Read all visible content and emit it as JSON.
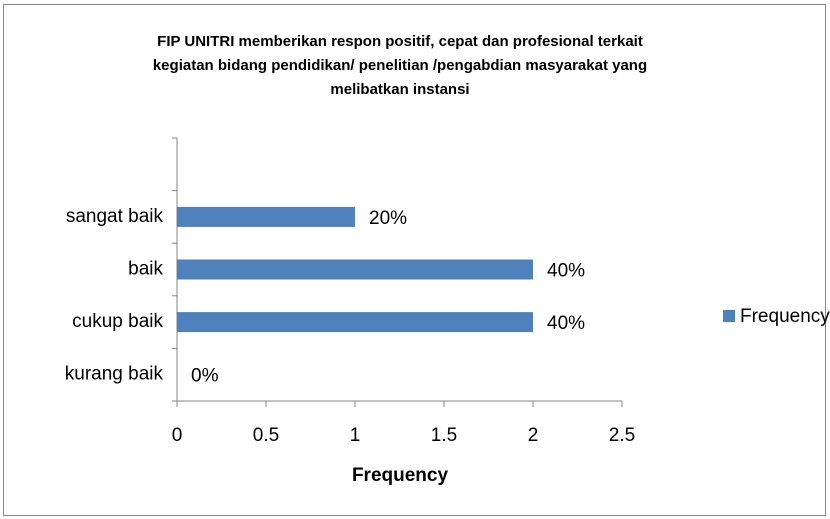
{
  "chart_data": {
    "type": "barh",
    "title": [
      "FIP UNITRI memberikan respon positif, cepat dan profesional terkait",
      "kegiatan bidang pendidikan/ penelitian /pengabdian masyarakat yang",
      "melibatkan instansi"
    ],
    "categories": [
      "kurang baik",
      "cukup baik",
      "baik",
      "sangat baik",
      null
    ],
    "series": [
      {
        "name": "Frequency",
        "color": "#4f81bd",
        "values": [
          0,
          2,
          2,
          1,
          null
        ],
        "percentages": [
          {
            "value": 0,
            "label": "0%"
          },
          {
            "value": 40,
            "label": "40%"
          },
          {
            "value": 40,
            "label": "40%"
          },
          {
            "value": 20,
            "label": "20%"
          },
          null
        ]
      }
    ],
    "xlabel": "Frequency",
    "xlim": [
      0,
      2.5
    ],
    "xticks": [
      0,
      0.5,
      1,
      1.5,
      2,
      2.5
    ],
    "legend": "right"
  }
}
